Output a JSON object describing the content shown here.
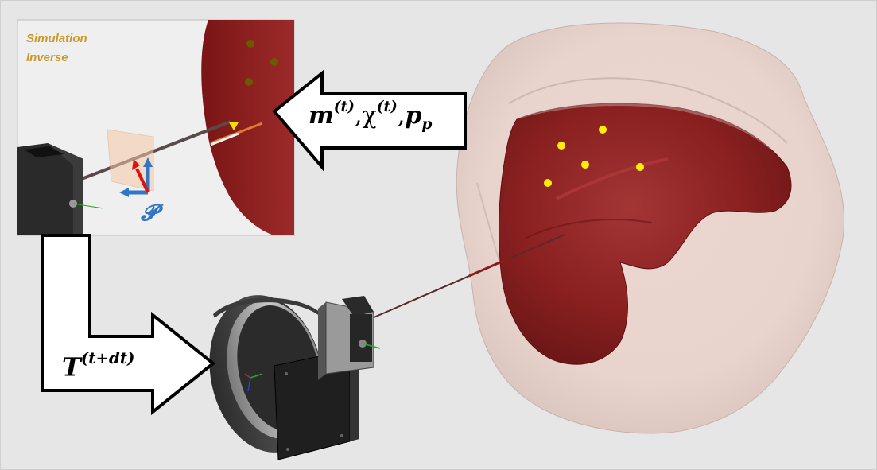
{
  "inset": {
    "title_line1": "Simulation",
    "title_line2": "Inverse",
    "frame_label": "𝓟"
  },
  "top_arrow": {
    "m": "m",
    "m_sup": "(t)",
    "chi": "χ",
    "chi_sup": "(t)",
    "p": "p",
    "p_sub": "p",
    "sep": ","
  },
  "bottom_arrow": {
    "T": "T",
    "T_sup": "(t+dt)"
  },
  "colors": {
    "background": "#e6e6e6",
    "organ": "#8c2020",
    "skin": "#f1dcd5",
    "marker": "#ffee00",
    "label": "#c99a26",
    "frame_blue": "#2f76c5",
    "frame_red": "#e01010"
  },
  "icons": [
    "ring-mount-icon",
    "needle-device-icon",
    "camera-block-icon",
    "coordinate-frame-icon"
  ]
}
